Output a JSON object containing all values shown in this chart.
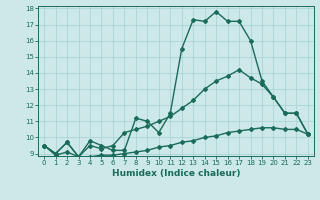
{
  "xlabel": "Humidex (Indice chaleur)",
  "x": [
    0,
    1,
    2,
    3,
    4,
    5,
    6,
    7,
    8,
    9,
    10,
    11,
    12,
    13,
    14,
    15,
    16,
    17,
    18,
    19,
    20,
    21,
    22,
    23
  ],
  "line1": [
    9.5,
    9.0,
    9.7,
    8.8,
    9.8,
    9.5,
    9.2,
    9.2,
    11.2,
    11.0,
    10.3,
    11.5,
    15.5,
    17.3,
    17.2,
    17.8,
    17.2,
    17.2,
    16.0,
    13.5,
    12.5,
    11.5,
    11.5,
    10.2
  ],
  "line2": [
    9.5,
    9.0,
    9.7,
    8.8,
    9.5,
    9.3,
    9.5,
    10.3,
    10.5,
    10.7,
    11.0,
    11.3,
    11.8,
    12.3,
    13.0,
    13.5,
    13.8,
    14.2,
    13.7,
    13.3,
    12.5,
    11.5,
    11.5,
    10.2
  ],
  "line3": [
    9.5,
    8.9,
    9.1,
    8.8,
    8.8,
    8.9,
    8.9,
    9.0,
    9.1,
    9.2,
    9.4,
    9.5,
    9.7,
    9.8,
    10.0,
    10.1,
    10.3,
    10.4,
    10.5,
    10.6,
    10.6,
    10.5,
    10.5,
    10.2
  ],
  "line_color": "#1a6b5a",
  "bg_color": "#cce8e8",
  "grid_color": "#add4d4",
  "ylim": [
    9,
    18
  ],
  "xlim": [
    -0.5,
    23.5
  ],
  "yticks": [
    9,
    10,
    11,
    12,
    13,
    14,
    15,
    16,
    17,
    18
  ],
  "xticks": [
    0,
    1,
    2,
    3,
    4,
    5,
    6,
    7,
    8,
    9,
    10,
    11,
    12,
    13,
    14,
    15,
    16,
    17,
    18,
    19,
    20,
    21,
    22,
    23
  ],
  "marker": "D",
  "markersize": 2.0,
  "linewidth": 1.0,
  "tick_fontsize": 5.0,
  "xlabel_fontsize": 6.5
}
